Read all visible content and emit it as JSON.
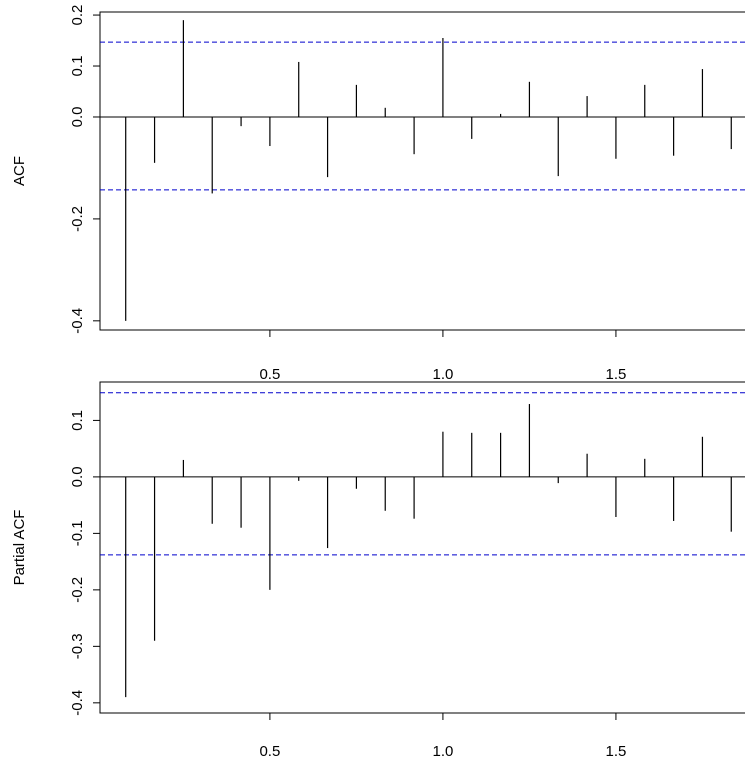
{
  "chart_data": [
    {
      "type": "bar",
      "ylabel": "ACF",
      "x": [
        0.0833,
        0.1667,
        0.25,
        0.3333,
        0.4167,
        0.5,
        0.5833,
        0.6667,
        0.75,
        0.8333,
        0.9167,
        1.0,
        1.0833,
        1.1667,
        1.25,
        1.3333,
        1.4167,
        1.5,
        1.5833,
        1.6667,
        1.75,
        1.8333
      ],
      "values": [
        -0.4,
        -0.09,
        0.19,
        -0.15,
        -0.018,
        -0.057,
        0.108,
        -0.118,
        0.063,
        0.018,
        -0.073,
        0.155,
        -0.043,
        0.006,
        0.069,
        -0.116,
        0.041,
        -0.082,
        0.063,
        -0.076,
        0.094,
        -0.063
      ],
      "color": "#000000",
      "reference_lines": [
        0.147,
        -0.143
      ],
      "reference_color": "#0000cc",
      "xlim": [
        0.009,
        1.873
      ],
      "xticks": [
        0.5,
        {
          "value": 1.0,
          "label": "1.0"
        },
        1.5
      ],
      "ylim": [
        -0.418,
        0.206
      ],
      "yticks": [
        0.2,
        0.1,
        {
          "value": 0,
          "label": "0.0"
        },
        -0.2,
        -0.4
      ]
    },
    {
      "type": "bar",
      "ylabel": "Partial ACF",
      "x": [
        0.0833,
        0.1667,
        0.25,
        0.3333,
        0.4167,
        0.5,
        0.5833,
        0.6667,
        0.75,
        0.8333,
        0.9167,
        1.0,
        1.0833,
        1.1667,
        1.25,
        1.3333,
        1.4167,
        1.5,
        1.5833,
        1.6667,
        1.75,
        1.8333
      ],
      "values": [
        -0.39,
        -0.29,
        0.03,
        -0.083,
        -0.09,
        -0.2,
        -0.007,
        -0.126,
        -0.021,
        -0.06,
        -0.074,
        0.08,
        0.078,
        0.078,
        0.129,
        -0.011,
        0.041,
        -0.071,
        0.032,
        -0.078,
        0.071,
        -0.097
      ],
      "color": "#000000",
      "reference_lines": [
        0.149,
        -0.138
      ],
      "reference_color": "#0000cc",
      "xlim": [
        0.009,
        1.873
      ],
      "xticks": [
        0.5,
        {
          "value": 1.0,
          "label": "1.0"
        },
        1.5
      ],
      "ylim": [
        -0.418,
        0.168
      ],
      "yticks": [
        0.1,
        {
          "value": 0,
          "label": "0.0"
        },
        -0.1,
        -0.2,
        -0.3,
        -0.4
      ]
    }
  ]
}
